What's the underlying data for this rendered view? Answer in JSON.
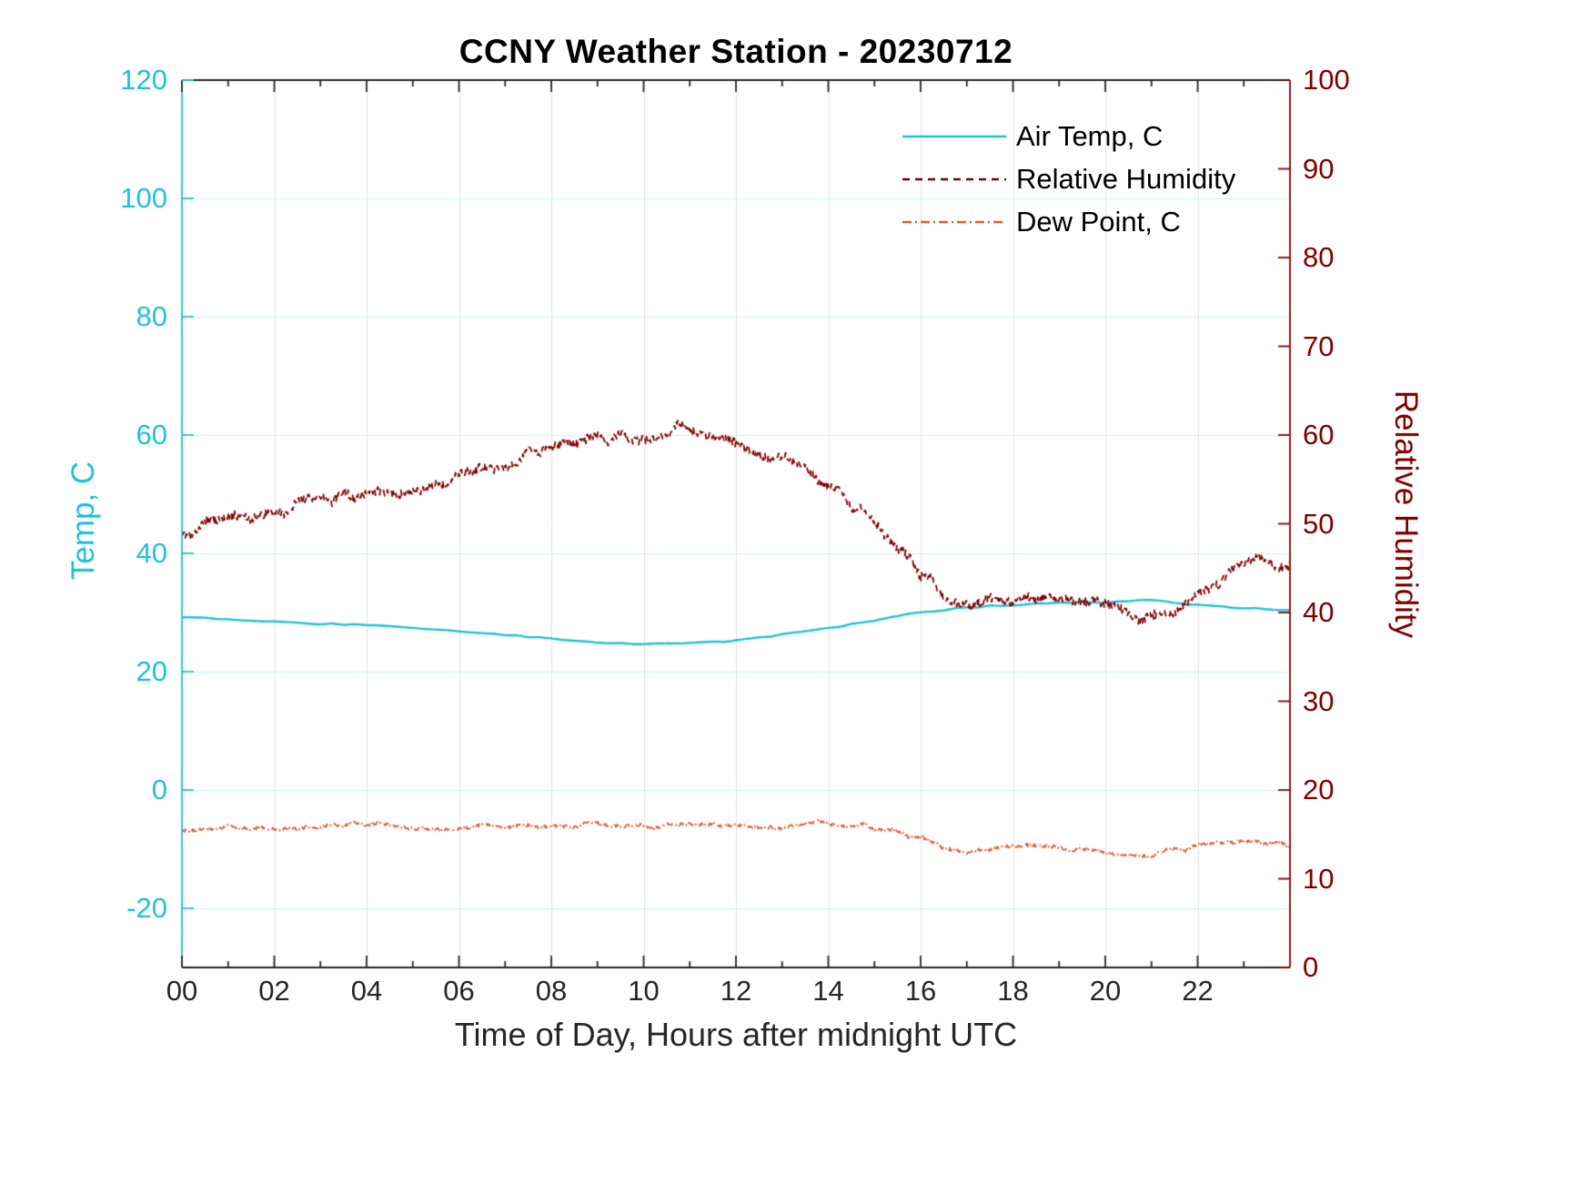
{
  "figure": {
    "background": "#FFFFFF"
  },
  "chart_data": {
    "type": "line",
    "title": "CCNY Weather Station - 20230712",
    "xlabel": "Time of Day, Hours after midnight UTC",
    "xlim": [
      0,
      24
    ],
    "x_ticks": [
      {
        "value": 0,
        "label": "00"
      },
      {
        "value": 2,
        "label": "02"
      },
      {
        "value": 4,
        "label": "04"
      },
      {
        "value": 6,
        "label": "06"
      },
      {
        "value": 8,
        "label": "08"
      },
      {
        "value": 10,
        "label": "10"
      },
      {
        "value": 12,
        "label": "12"
      },
      {
        "value": 14,
        "label": "14"
      },
      {
        "value": 16,
        "label": "16"
      },
      {
        "value": 18,
        "label": "18"
      },
      {
        "value": 20,
        "label": "20"
      },
      {
        "value": 22,
        "label": "22"
      }
    ],
    "x_minor_ticks": [
      1,
      3,
      5,
      7,
      9,
      11,
      13,
      15,
      17,
      19,
      21,
      23
    ],
    "axes": {
      "left": {
        "label": "Temp, C",
        "color": "#20C2DA",
        "lim": [
          -30,
          120
        ],
        "ticks": [
          -20,
          0,
          20,
          40,
          60,
          80,
          100,
          120
        ]
      },
      "right": {
        "label": "Relative Humidity",
        "color": "#800000",
        "lim": [
          0,
          100
        ],
        "ticks": [
          0,
          10,
          20,
          30,
          40,
          50,
          60,
          70,
          80,
          90,
          100
        ]
      }
    },
    "grid": {
      "vertical_at_x_ticks": true,
      "horizontal_at_left_ticks": true
    },
    "legend": {
      "position": "upper-right-inside",
      "box": false
    },
    "x": [
      0,
      1,
      2,
      3,
      4,
      5,
      6,
      7,
      8,
      9,
      10,
      11,
      12,
      13,
      14,
      15,
      16,
      17,
      18,
      19,
      20,
      21,
      22,
      23,
      24
    ],
    "series": [
      {
        "name": "Air Temp, C",
        "axis": "left",
        "color": "#20C2DA",
        "line_style": "solid",
        "line_width": 2.4,
        "noise_wander": 0.12,
        "noise_jitter": 0.02,
        "values": [
          29.2,
          28.8,
          28.4,
          28.1,
          27.9,
          27.4,
          26.8,
          26.2,
          25.6,
          25.0,
          24.7,
          24.8,
          25.3,
          26.3,
          27.4,
          28.6,
          30.0,
          30.8,
          31.3,
          31.6,
          31.7,
          32.0,
          31.3,
          30.8,
          30.4
        ]
      },
      {
        "name": "Relative Humidity",
        "axis": "right",
        "color": "#800000",
        "line_style": "dashed",
        "line_width": 1.8,
        "noise_wander": 0.9,
        "noise_jitter": 0.5,
        "values": [
          49.0,
          50.5,
          51.5,
          52.5,
          53.5,
          53.5,
          55.0,
          57.0,
          58.5,
          59.5,
          59.5,
          60.5,
          59.0,
          57.0,
          54.5,
          50.0,
          44.5,
          41.0,
          42.0,
          41.5,
          40.5,
          39.5,
          42.0,
          45.5,
          45.0
        ]
      },
      {
        "name": "Dew Point, C",
        "axis": "left",
        "color": "#DA6134",
        "line_style": "dashdot",
        "line_width": 1.8,
        "noise_wander": 0.5,
        "noise_jitter": 0.28,
        "values": [
          -7.0,
          -6.5,
          -6.3,
          -6.2,
          -6.0,
          -6.4,
          -6.4,
          -6.1,
          -6.0,
          -6.0,
          -6.3,
          -5.6,
          -6.0,
          -6.1,
          -5.7,
          -6.4,
          -8.3,
          -10.2,
          -9.4,
          -10.0,
          -10.4,
          -10.8,
          -9.6,
          -9.0,
          -9.3
        ]
      }
    ]
  }
}
